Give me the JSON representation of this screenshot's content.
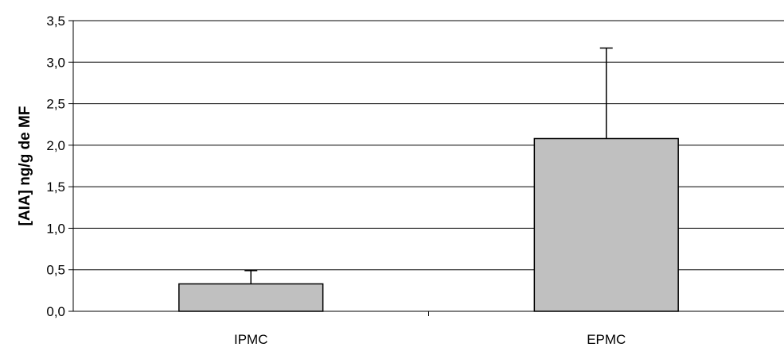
{
  "chart_data": {
    "type": "bar",
    "title": "",
    "xlabel": "",
    "ylabel": "[AIA] ng/g de MF",
    "categories": [
      "IPMC",
      "EPMC"
    ],
    "values": [
      0.33,
      2.08
    ],
    "error_plus": [
      0.16,
      1.09
    ],
    "ylim": [
      0,
      3.5
    ],
    "yticks": [
      0,
      0.5,
      1.0,
      1.5,
      2.0,
      2.5,
      3.0,
      3.5
    ],
    "ytick_labels": [
      "0,0",
      "0,5",
      "1,0",
      "1,5",
      "2,0",
      "2,5",
      "3,0",
      "3,5"
    ],
    "grid": true,
    "legend": "none",
    "bar_color": "#c0c0c0",
    "edge_color": "#000000"
  }
}
